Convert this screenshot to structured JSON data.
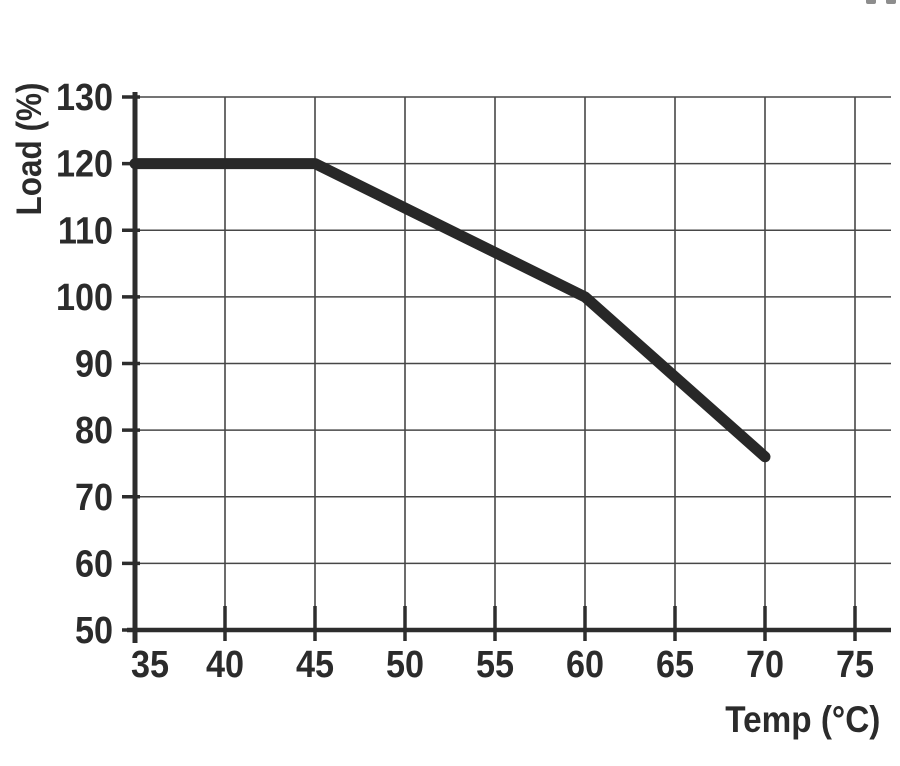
{
  "figure": {
    "background": "#ffffff",
    "note": "scanned datasheet derating curve"
  },
  "chart_data": {
    "type": "line",
    "title": "",
    "xlabel": "Temp (°C)",
    "ylabel": "Load (%)",
    "x_ticks": [
      35,
      40,
      45,
      50,
      55,
      60,
      65,
      70,
      75
    ],
    "y_ticks": [
      50,
      60,
      70,
      80,
      90,
      100,
      110,
      120,
      130
    ],
    "xlim": [
      35,
      77
    ],
    "ylim": [
      50,
      130
    ],
    "grid": true,
    "legend": false,
    "series": [
      {
        "name": "load-derating-curve",
        "points": [
          [
            35,
            120
          ],
          [
            45,
            120
          ],
          [
            60,
            100
          ],
          [
            70,
            76
          ]
        ],
        "color": "#282828",
        "stroke_width": 11
      }
    ],
    "colors": {
      "grid": "#474747",
      "axis": "#2d2d2d",
      "text": "#2b2b2b",
      "background": "#ffffff"
    }
  }
}
